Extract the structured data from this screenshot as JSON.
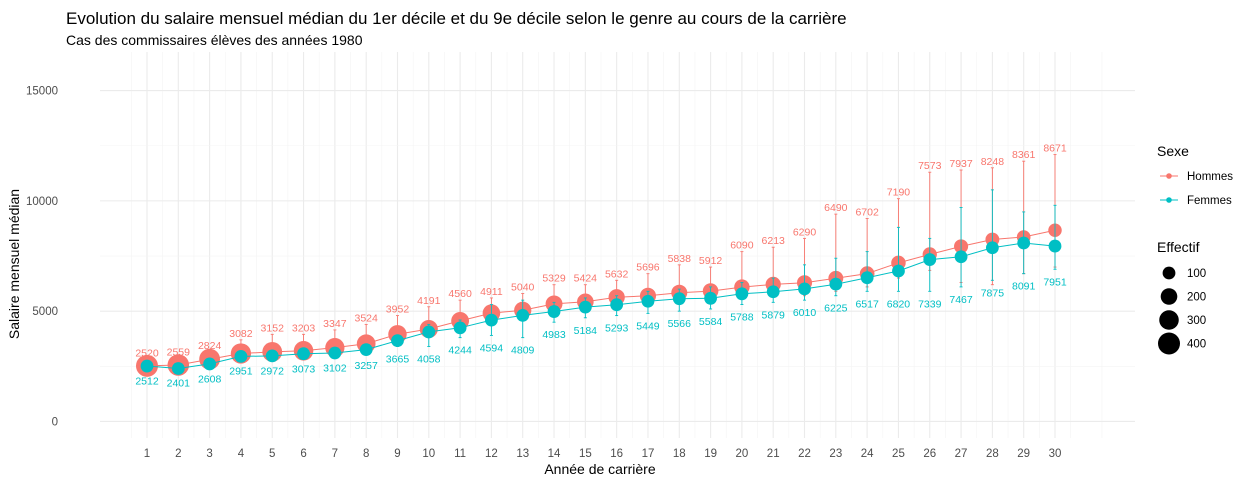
{
  "chart_data": {
    "type": "line",
    "title": "Evolution du salaire mensuel médian du 1er décile et du 9e décile selon le genre au cours de la carrière",
    "subtitle": "Cas des commissaires élèves des années 1980",
    "xlabel": "Année de carrière",
    "ylabel": "Salaire mensuel médian",
    "categories": [
      1,
      2,
      3,
      4,
      5,
      6,
      7,
      8,
      9,
      10,
      11,
      12,
      13,
      14,
      15,
      16,
      17,
      18,
      19,
      20,
      21,
      22,
      23,
      24,
      25,
      26,
      27,
      28,
      29,
      30
    ],
    "ylim": [
      -750,
      16750
    ],
    "yticks": [
      0,
      5000,
      10000,
      15000
    ],
    "series": [
      {
        "name": "Hommes",
        "color": "#F8766D",
        "values": [
          2520,
          2559,
          2824,
          3082,
          3152,
          3203,
          3347,
          3524,
          3952,
          4191,
          4560,
          4911,
          5040,
          5329,
          5424,
          5632,
          5696,
          5838,
          5912,
          6090,
          6213,
          6290,
          6490,
          6702,
          7190,
          7573,
          7937,
          8248,
          8361,
          8671
        ],
        "error_low": [
          2300,
          2350,
          2600,
          2850,
          2900,
          2950,
          3050,
          3200,
          3600,
          3800,
          4150,
          4450,
          4600,
          4900,
          4950,
          5150,
          5200,
          5300,
          5400,
          5550,
          5650,
          5700,
          5900,
          6100,
          6500,
          6850,
          6300,
          6200,
          6700,
          7000
        ],
        "error_high": [
          2800,
          2850,
          3150,
          3700,
          3950,
          3950,
          4150,
          4400,
          4800,
          5200,
          5500,
          5600,
          5800,
          6200,
          6200,
          6400,
          6700,
          7100,
          7000,
          7700,
          7900,
          8300,
          9400,
          9200,
          10100,
          11300,
          11400,
          11500,
          11800,
          12100
        ],
        "effectif": [
          400,
          380,
          350,
          330,
          310,
          300,
          290,
          270,
          260,
          250,
          240,
          230,
          220,
          210,
          200,
          190,
          185,
          180,
          170,
          165,
          160,
          155,
          150,
          145,
          140,
          135,
          130,
          125,
          120,
          115
        ]
      },
      {
        "name": "Femmes",
        "color": "#00BFC4",
        "values": [
          2512,
          2401,
          2608,
          2951,
          2972,
          3073,
          3102,
          3257,
          3665,
          4058,
          4244,
          4594,
          4809,
          4983,
          5184,
          5293,
          5449,
          5566,
          5584,
          5788,
          5879,
          6010,
          6225,
          6517,
          6820,
          7339,
          7467,
          7875,
          8091,
          7951
        ],
        "error_low": [
          2400,
          2300,
          2500,
          2850,
          2850,
          2950,
          3000,
          3100,
          3400,
          3400,
          3800,
          3900,
          3800,
          4500,
          4700,
          4800,
          4900,
          5000,
          5100,
          5300,
          5400,
          5500,
          5700,
          5900,
          5900,
          5900,
          6100,
          6400,
          6700,
          6900
        ],
        "error_high": [
          2650,
          2550,
          2750,
          3100,
          3200,
          3250,
          3300,
          3500,
          3900,
          4400,
          4600,
          5300,
          5500,
          5400,
          5600,
          5700,
          5900,
          6000,
          6100,
          6300,
          6500,
          7100,
          7400,
          7700,
          8800,
          8300,
          9700,
          10500,
          9500,
          9800
        ],
        "effectif": [
          100,
          100,
          100,
          100,
          100,
          100,
          100,
          100,
          100,
          100,
          100,
          100,
          100,
          100,
          100,
          100,
          100,
          100,
          100,
          100,
          100,
          100,
          100,
          100,
          100,
          100,
          100,
          100,
          100,
          100
        ]
      }
    ],
    "legend": {
      "position": "right",
      "colour_title": "Sexe",
      "colour_items": [
        "Hommes",
        "Femmes"
      ],
      "size_title": "Effectif",
      "size_items": [
        100,
        200,
        300,
        400
      ]
    },
    "grid": true
  }
}
